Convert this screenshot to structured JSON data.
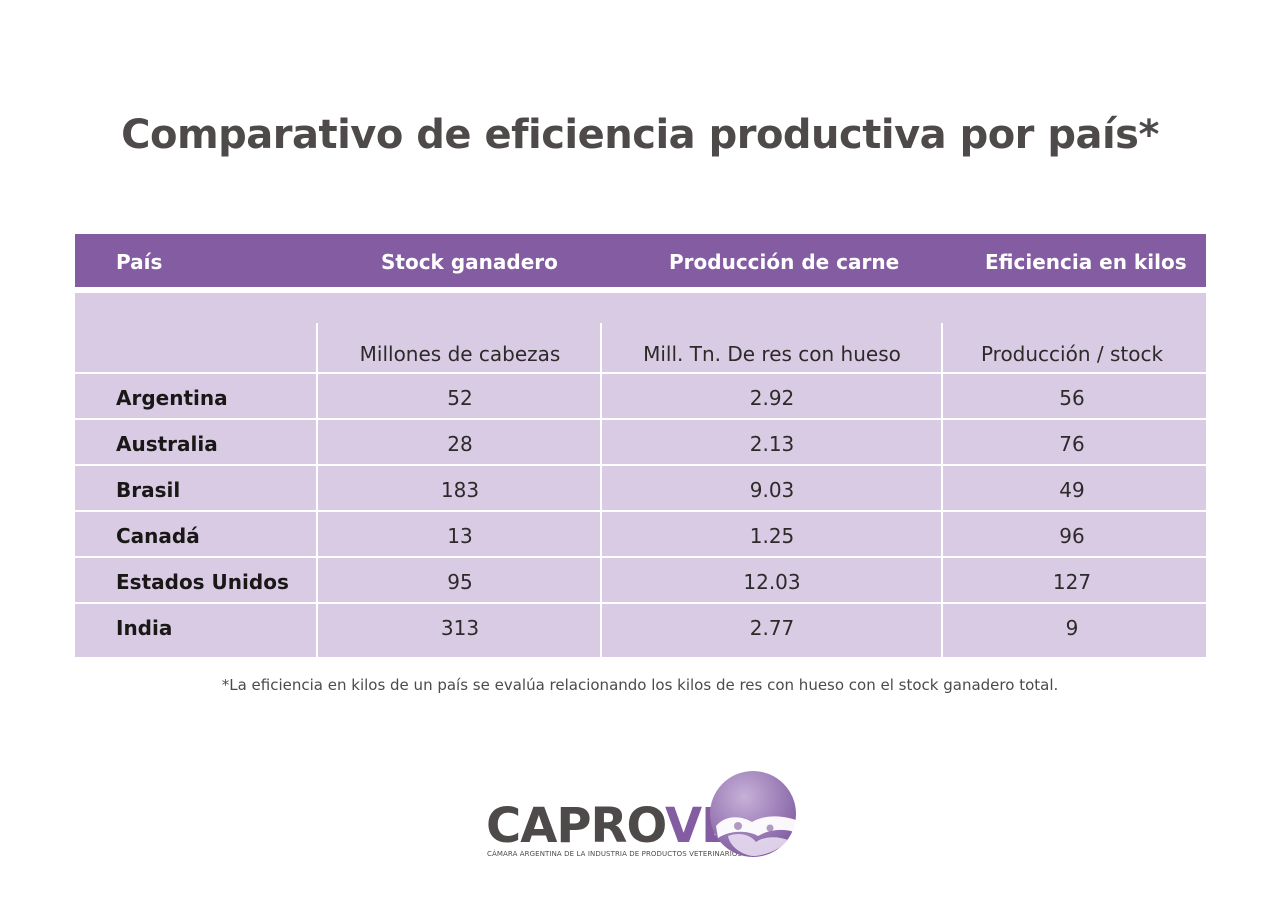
{
  "title": "Comparativo de eficiencia productiva por país*",
  "table": {
    "headers": [
      "País",
      "Stock ganadero",
      "Producción de carne",
      "Eficiencia en kilos"
    ],
    "units": [
      "Millones de cabezas",
      "Mill. Tn. De res con hueso",
      "Producción / stock"
    ],
    "rows": [
      {
        "country": "Argentina",
        "stock": "52",
        "production": "2.92",
        "efficiency": "56"
      },
      {
        "country": "Australia",
        "stock": "28",
        "production": "2.13",
        "efficiency": "76"
      },
      {
        "country": "Brasil",
        "stock": "183",
        "production": "9.03",
        "efficiency": "49"
      },
      {
        "country": "Canadá",
        "stock": "13",
        "production": "1.25",
        "efficiency": "96"
      },
      {
        "country": "Estados Unidos",
        "stock": "95",
        "production": "12.03",
        "efficiency": "127"
      },
      {
        "country": "India",
        "stock": "313",
        "production": "2.77",
        "efficiency": "9"
      }
    ]
  },
  "footnote": "*La eficiencia en kilos de un país se evalúa relacionando los kilos de res con hueso con el stock ganadero total.",
  "logo": {
    "name_part1": "CAPRO",
    "name_part2": "VE",
    "subtitle": "CÁMARA ARGENTINA DE LA INDUSTRIA DE PRODUCTOS VETERINARIOS"
  },
  "colors": {
    "accent": "#835ca1",
    "table_fill": "#d9cbe4",
    "text_dark": "#4e4a4a"
  }
}
